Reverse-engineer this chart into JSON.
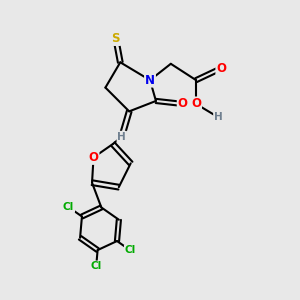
{
  "bg_color": "#e8e8e8",
  "atom_colors": {
    "C": "#000000",
    "N": "#0000ee",
    "O": "#ff0000",
    "S": "#ccaa00",
    "Cl": "#00aa00",
    "H": "#708090"
  }
}
